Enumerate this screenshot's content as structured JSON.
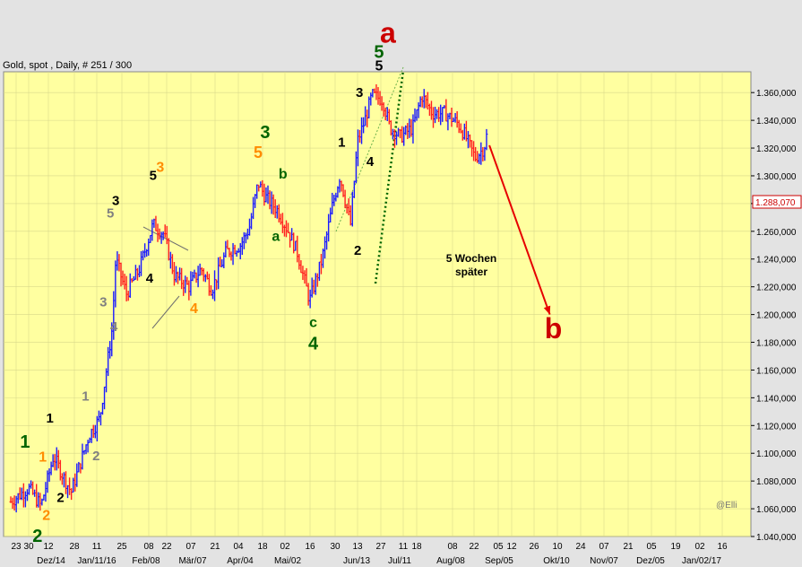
{
  "chart_data": {
    "type": "ohlc",
    "title": "Gold, spot , Daily, # 251 / 300",
    "watermark": "@Elli",
    "last_price_label": "1.288,070",
    "ylim": [
      1040,
      1380
    ],
    "y_ticks": [
      "1.040,000",
      "1.060,000",
      "1.080,000",
      "1.100,000",
      "1.120,000",
      "1.140,000",
      "1.160,000",
      "1.180,000",
      "1.200,000",
      "1.220,000",
      "1.240,000",
      "1.260,000",
      "1.280,000",
      "1.300,000",
      "1.320,000",
      "1.340,000",
      "1.360,000"
    ],
    "x_day_ticks": [
      "23",
      "30",
      "12",
      "28",
      "11",
      "25",
      "08",
      "22",
      "07",
      "21",
      "04",
      "18",
      "02",
      "16",
      "30",
      "13",
      "27",
      "11",
      "18",
      "08",
      "22",
      "05",
      "12",
      "26",
      "10",
      "24",
      "07",
      "21",
      "05",
      "19",
      "02",
      "16"
    ],
    "x_month_ticks": [
      "Dez/14",
      "Jan/11/16",
      "Feb/08",
      "Mär/07",
      "Apr/04",
      "Mai/02",
      "Jun/13",
      "Jul/11",
      "Aug/08",
      "Sep/05",
      "Okt/10",
      "Nov/07",
      "Dez/05",
      "Jan/02/17"
    ],
    "colors": {
      "background": "#ffffa0",
      "up": "#1a1aff",
      "down": "#ff2020",
      "grid": "#d9d98a"
    },
    "price_path": [
      {
        "date": "2015-12-15",
        "price": 1065
      },
      {
        "date": "2015-12-25",
        "price": 1075
      },
      {
        "date": "2016-01-01",
        "price": 1062
      },
      {
        "date": "2016-01-08",
        "price": 1098
      },
      {
        "date": "2016-01-14",
        "price": 1082
      },
      {
        "date": "2016-01-18",
        "price": 1072
      },
      {
        "date": "2016-01-28",
        "price": 1113
      },
      {
        "date": "2016-02-03",
        "price": 1125
      },
      {
        "date": "2016-02-10",
        "price": 1190
      },
      {
        "date": "2016-02-12",
        "price": 1240
      },
      {
        "date": "2016-02-18",
        "price": 1215
      },
      {
        "date": "2016-02-25",
        "price": 1232
      },
      {
        "date": "2016-03-04",
        "price": 1265
      },
      {
        "date": "2016-03-10",
        "price": 1258
      },
      {
        "date": "2016-03-16",
        "price": 1228
      },
      {
        "date": "2016-03-24",
        "price": 1220
      },
      {
        "date": "2016-03-31",
        "price": 1233
      },
      {
        "date": "2016-04-06",
        "price": 1218
      },
      {
        "date": "2016-04-14",
        "price": 1245
      },
      {
        "date": "2016-04-22",
        "price": 1250
      },
      {
        "date": "2016-04-27",
        "price": 1262
      },
      {
        "date": "2016-05-02",
        "price": 1295
      },
      {
        "date": "2016-05-06",
        "price": 1285
      },
      {
        "date": "2016-05-13",
        "price": 1275
      },
      {
        "date": "2016-05-19",
        "price": 1260
      },
      {
        "date": "2016-05-24",
        "price": 1245
      },
      {
        "date": "2016-05-31",
        "price": 1210
      },
      {
        "date": "2016-06-07",
        "price": 1240
      },
      {
        "date": "2016-06-13",
        "price": 1280
      },
      {
        "date": "2016-06-17",
        "price": 1300
      },
      {
        "date": "2016-06-23",
        "price": 1265
      },
      {
        "date": "2016-06-27",
        "price": 1325
      },
      {
        "date": "2016-07-01",
        "price": 1340
      },
      {
        "date": "2016-07-05",
        "price": 1358
      },
      {
        "date": "2016-07-11",
        "price": 1355
      },
      {
        "date": "2016-07-15",
        "price": 1335
      },
      {
        "date": "2016-07-21",
        "price": 1328
      },
      {
        "date": "2016-07-28",
        "price": 1335
      },
      {
        "date": "2016-08-02",
        "price": 1358
      },
      {
        "date": "2016-08-08",
        "price": 1345
      },
      {
        "date": "2016-08-15",
        "price": 1345
      },
      {
        "date": "2016-08-22",
        "price": 1338
      },
      {
        "date": "2016-08-26",
        "price": 1330
      },
      {
        "date": "2016-09-01",
        "price": 1313
      },
      {
        "date": "2016-09-06",
        "price": 1320
      },
      {
        "date": "2016-09-08",
        "price": 1332
      }
    ],
    "wave_labels": [
      {
        "text": "a",
        "color": "#cc0000",
        "size": 32,
        "date": "2016-07-14",
        "price": 1396
      },
      {
        "text": "b",
        "color": "#cc0000",
        "size": 32,
        "date": "2016-10-15",
        "price": 1183
      },
      {
        "text": "5",
        "color": "#006400",
        "size": 20,
        "date": "2016-07-09",
        "price": 1385
      },
      {
        "text": "5",
        "color": "#000000",
        "size": 16,
        "date": "2016-07-09",
        "price": 1376
      },
      {
        "text": "3",
        "color": "#000000",
        "size": 15,
        "date": "2016-06-28",
        "price": 1357
      },
      {
        "text": "1",
        "color": "#000000",
        "size": 15,
        "date": "2016-06-18",
        "price": 1321
      },
      {
        "text": "4",
        "color": "#000000",
        "size": 15,
        "date": "2016-07-04",
        "price": 1307
      },
      {
        "text": "2",
        "color": "#000000",
        "size": 15,
        "date": "2016-06-27",
        "price": 1243
      },
      {
        "text": "3",
        "color": "#006400",
        "size": 20,
        "date": "2016-05-06",
        "price": 1327
      },
      {
        "text": "5",
        "color": "#ff8c00",
        "size": 18,
        "date": "2016-05-02",
        "price": 1313
      },
      {
        "text": "b",
        "color": "#006400",
        "size": 16,
        "date": "2016-05-16",
        "price": 1298
      },
      {
        "text": "a",
        "color": "#006400",
        "size": 16,
        "date": "2016-05-12",
        "price": 1253
      },
      {
        "text": "c",
        "color": "#006400",
        "size": 16,
        "date": "2016-06-02",
        "price": 1191
      },
      {
        "text": "4",
        "color": "#006400",
        "size": 20,
        "date": "2016-06-02",
        "price": 1175
      },
      {
        "text": "3",
        "color": "#000000",
        "size": 15,
        "date": "2016-02-12",
        "price": 1279
      },
      {
        "text": "5",
        "color": "#808080",
        "size": 15,
        "date": "2016-02-09",
        "price": 1270
      },
      {
        "text": "5",
        "color": "#000000",
        "size": 15,
        "date": "2016-03-04",
        "price": 1297
      },
      {
        "text": "3",
        "color": "#ff8c00",
        "size": 16,
        "date": "2016-03-08",
        "price": 1303
      },
      {
        "text": "4",
        "color": "#000000",
        "size": 15,
        "date": "2016-03-02",
        "price": 1223
      },
      {
        "text": "4",
        "color": "#ff8c00",
        "size": 16,
        "date": "2016-03-27",
        "price": 1201
      },
      {
        "text": "3",
        "color": "#808080",
        "size": 15,
        "date": "2016-02-05",
        "price": 1206
      },
      {
        "text": "4",
        "color": "#808080",
        "size": 15,
        "date": "2016-02-11",
        "price": 1188
      },
      {
        "text": "1",
        "color": "#808080",
        "size": 15,
        "date": "2016-01-26",
        "price": 1138
      },
      {
        "text": "2",
        "color": "#808080",
        "size": 15,
        "date": "2016-02-01",
        "price": 1095
      },
      {
        "text": "1",
        "color": "#000000",
        "size": 15,
        "date": "2016-01-06",
        "price": 1122
      },
      {
        "text": "2",
        "color": "#000000",
        "size": 15,
        "date": "2016-01-12",
        "price": 1065
      },
      {
        "text": "1",
        "color": "#006400",
        "size": 20,
        "date": "2015-12-23",
        "price": 1104
      },
      {
        "text": "1",
        "color": "#ff8c00",
        "size": 16,
        "date": "2016-01-02",
        "price": 1094
      },
      {
        "text": "2",
        "color": "#ff8c00",
        "size": 16,
        "date": "2016-01-04",
        "price": 1052
      },
      {
        "text": "2",
        "color": "#006400",
        "size": 20,
        "date": "2015-12-30",
        "price": 1036
      }
    ],
    "annotation_text": [
      "5 Wochen",
      "später"
    ],
    "forecast_arrow": {
      "from": {
        "date": "2016-09-09",
        "price": 1322
      },
      "to": {
        "date": "2016-10-13",
        "price": 1200
      }
    }
  }
}
